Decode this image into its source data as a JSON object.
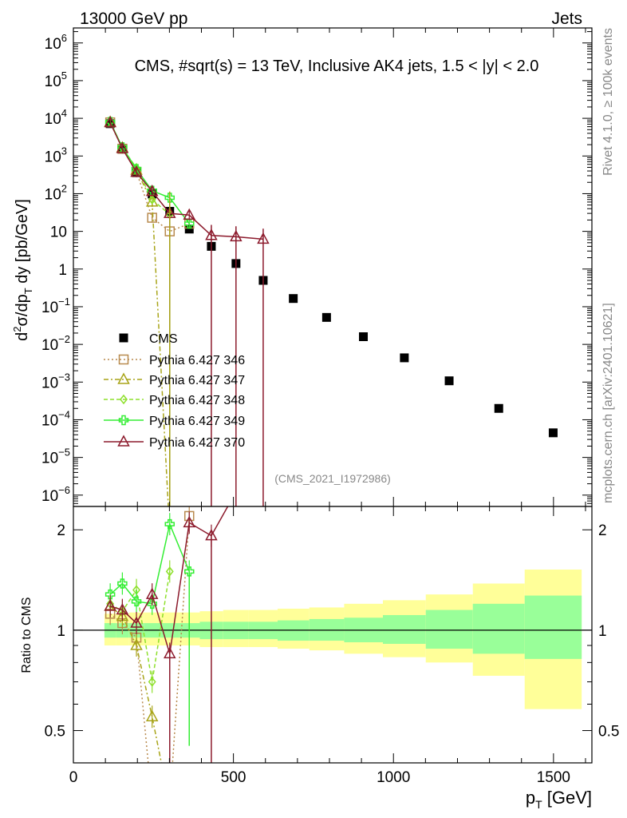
{
  "header": {
    "left": "13000 GeV pp",
    "right": "Jets"
  },
  "side": {
    "rivet": "Rivet 4.1.0, ≥ 100k events",
    "mcplots": "mcplots.cern.ch [arXiv:2401.10621]"
  },
  "chart_data": {
    "type": "scatter",
    "title": "CMS, #sqrt(s) = 13 TeV, Inclusive AK4 jets, 1.5 < |y| < 2.0",
    "watermark": "(CMS_2021_I1972986)",
    "xlabel": "p_T [GeV]",
    "ylabel": "d²σ/dp_T dy [pb/GeV]",
    "ratio_ylabel": "Ratio to CMS",
    "xlim": [
      0,
      1620
    ],
    "ylim": [
      5e-07,
      2500000.0
    ],
    "ratio_ylim": [
      0.4,
      2.35
    ],
    "x_ticks": [
      0,
      500,
      1000,
      1500
    ],
    "x_tick_labels": [
      "0",
      "500",
      "1000",
      "1500"
    ],
    "y_ticks": [
      {
        "v": 1000000.0,
        "m": "10",
        "e": "6"
      },
      {
        "v": 100000.0,
        "m": "10",
        "e": "5"
      },
      {
        "v": 10000.0,
        "m": "10",
        "e": "4"
      },
      {
        "v": 1000.0,
        "m": "10",
        "e": "3"
      },
      {
        "v": 100.0,
        "m": "10",
        "e": "2"
      },
      {
        "v": 10,
        "m": "10",
        "e": ""
      },
      {
        "v": 1,
        "m": "1",
        "e": ""
      },
      {
        "v": 0.1,
        "m": "10",
        "e": "−1"
      },
      {
        "v": 0.01,
        "m": "10",
        "e": "−2"
      },
      {
        "v": 0.001,
        "m": "10",
        "e": "−3"
      },
      {
        "v": 0.0001,
        "m": "10",
        "e": "−4"
      },
      {
        "v": 1e-05,
        "m": "10",
        "e": "−5"
      },
      {
        "v": 1e-06,
        "m": "10",
        "e": "−6"
      }
    ],
    "ratio_ticks": [
      {
        "v": 0.5,
        "label": "0.5"
      },
      {
        "v": 1,
        "label": "1"
      },
      {
        "v": 2,
        "label": "2"
      }
    ],
    "bins": [
      {
        "lo": 97,
        "hi": 133
      },
      {
        "lo": 133,
        "hi": 174
      },
      {
        "lo": 174,
        "hi": 220
      },
      {
        "lo": 220,
        "hi": 272
      },
      {
        "lo": 272,
        "hi": 330
      },
      {
        "lo": 330,
        "hi": 395
      },
      {
        "lo": 395,
        "hi": 468
      },
      {
        "lo": 468,
        "hi": 548
      },
      {
        "lo": 548,
        "hi": 638
      },
      {
        "lo": 638,
        "hi": 737
      },
      {
        "lo": 737,
        "hi": 846
      },
      {
        "lo": 846,
        "hi": 967
      },
      {
        "lo": 967,
        "hi": 1101
      },
      {
        "lo": 1101,
        "hi": 1248
      },
      {
        "lo": 1248,
        "hi": 1410
      },
      {
        "lo": 1410,
        "hi": 1588
      }
    ],
    "bands": {
      "stat": [
        [
          0.95,
          1.05
        ],
        [
          0.95,
          1.05
        ],
        [
          0.95,
          1.05
        ],
        [
          0.95,
          1.05
        ],
        [
          0.95,
          1.05
        ],
        [
          0.95,
          1.05
        ],
        [
          0.94,
          1.06
        ],
        [
          0.94,
          1.06
        ],
        [
          0.94,
          1.06
        ],
        [
          0.93,
          1.07
        ],
        [
          0.93,
          1.08
        ],
        [
          0.92,
          1.09
        ],
        [
          0.91,
          1.11
        ],
        [
          0.88,
          1.15
        ],
        [
          0.85,
          1.2
        ],
        [
          0.82,
          1.27
        ]
      ],
      "total": [
        [
          0.9,
          1.12
        ],
        [
          0.9,
          1.12
        ],
        [
          0.9,
          1.13
        ],
        [
          0.9,
          1.13
        ],
        [
          0.9,
          1.13
        ],
        [
          0.9,
          1.13
        ],
        [
          0.89,
          1.14
        ],
        [
          0.89,
          1.15
        ],
        [
          0.89,
          1.15
        ],
        [
          0.88,
          1.16
        ],
        [
          0.87,
          1.17
        ],
        [
          0.85,
          1.2
        ],
        [
          0.83,
          1.23
        ],
        [
          0.8,
          1.28
        ],
        [
          0.73,
          1.38
        ],
        [
          0.58,
          1.52
        ]
      ]
    },
    "series": [
      {
        "name": "CMS",
        "legend": "CMS",
        "color": "#000000",
        "marker": "square-filled",
        "dash": "",
        "x": [
          115,
          153,
          197,
          246,
          301,
          362,
          431,
          508,
          593,
          687,
          791,
          906,
          1034,
          1174,
          1329,
          1499
        ],
        "y": [
          7200,
          1500,
          360,
          98,
          34,
          11.5,
          4.0,
          1.4,
          0.5,
          0.165,
          0.052,
          0.016,
          0.0044,
          0.00108,
          0.0002,
          4.5e-05
        ],
        "ratio": []
      },
      {
        "name": "Pythia 6.427 346",
        "legend": "Pythia 6.427 346",
        "color": "#b88a4e",
        "marker": "square-open",
        "dash": "2,3",
        "x": [
          115,
          153,
          197,
          246,
          301,
          362
        ],
        "y": [
          7800,
          1560,
          380,
          23,
          10,
          16
        ],
        "ratio": [
          1.12,
          1.05,
          0.95,
          0.3,
          0.3,
          2.2
        ]
      },
      {
        "name": "Pythia 6.427 347",
        "legend": "Pythia 6.427 347",
        "color": "#a8a418",
        "marker": "triangle-open",
        "dash": "6,3,2,3",
        "x": [
          115,
          153,
          197,
          246,
          301
        ],
        "y": [
          7900,
          1650,
          420,
          60,
          1e-07
        ],
        "ratio": [
          1.18,
          1.1,
          0.9,
          0.55,
          0.3
        ]
      },
      {
        "name": "Pythia 6.427 348",
        "legend": "Pythia 6.427 348",
        "color": "#8ee02c",
        "marker": "diamond-open",
        "dash": "5,3",
        "x": [
          115,
          153,
          197,
          246,
          301
        ],
        "y": [
          8100,
          1650,
          480,
          70,
          28
        ],
        "ratio": [
          1.2,
          1.14,
          1.32,
          0.7,
          1.5
        ]
      },
      {
        "name": "Pythia 6.427 349",
        "legend": "Pythia 6.427 349",
        "color": "#33ee33",
        "marker": "cross-open",
        "dash": "",
        "x": [
          115,
          153,
          197,
          246,
          301,
          362
        ],
        "y": [
          8000,
          1700,
          450,
          120,
          78,
          16
        ],
        "ratio": [
          1.28,
          1.38,
          1.22,
          1.2,
          2.08,
          1.5
        ]
      },
      {
        "name": "Pythia 6.427 370",
        "legend": "Pythia 6.427 370",
        "color": "#8c1a2c",
        "marker": "triangle-open",
        "dash": "",
        "x": [
          115,
          153,
          197,
          246,
          301,
          362,
          431,
          508,
          593
        ],
        "y": [
          7700,
          1580,
          370,
          115,
          30,
          27,
          7.8,
          7.2,
          6.2
        ],
        "ratio": [
          1.18,
          1.15,
          1.05,
          1.28,
          0.85,
          2.1,
          1.92,
          2.6,
          2.6
        ]
      }
    ]
  }
}
